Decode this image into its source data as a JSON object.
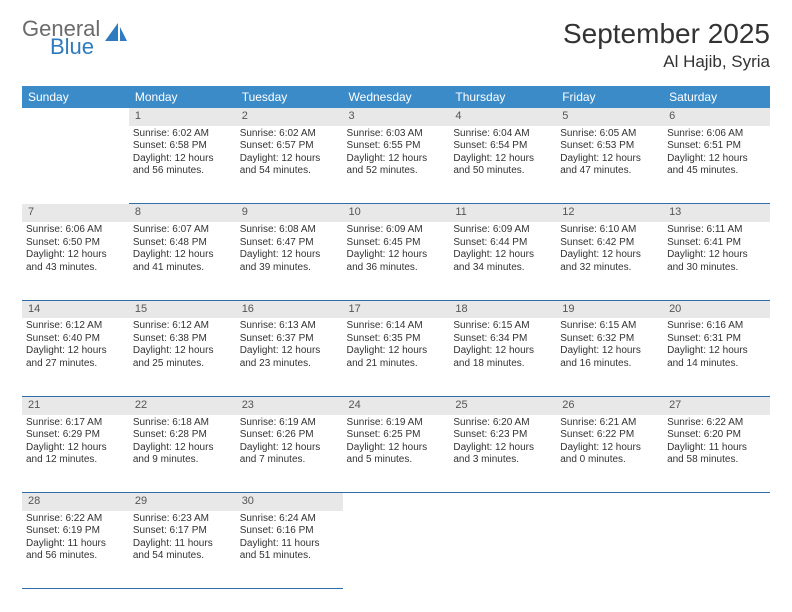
{
  "logo": {
    "general": "General",
    "blue": "Blue"
  },
  "title": "September 2025",
  "location": "Al Hajib, Syria",
  "colors": {
    "header_bg": "#3b8bc8",
    "header_text": "#ffffff",
    "daynum_bg": "#e8e8e8",
    "daynum_text": "#555555",
    "cell_border": "#2e6fa8",
    "logo_gray": "#6b6b6b",
    "logo_blue": "#2f7bbf"
  },
  "weekdays": [
    "Sunday",
    "Monday",
    "Tuesday",
    "Wednesday",
    "Thursday",
    "Friday",
    "Saturday"
  ],
  "weeks": [
    {
      "nums": [
        "",
        "1",
        "2",
        "3",
        "4",
        "5",
        "6"
      ],
      "cells": [
        null,
        {
          "sr": "Sunrise: 6:02 AM",
          "ss": "Sunset: 6:58 PM",
          "dl": "Daylight: 12 hours and 56 minutes."
        },
        {
          "sr": "Sunrise: 6:02 AM",
          "ss": "Sunset: 6:57 PM",
          "dl": "Daylight: 12 hours and 54 minutes."
        },
        {
          "sr": "Sunrise: 6:03 AM",
          "ss": "Sunset: 6:55 PM",
          "dl": "Daylight: 12 hours and 52 minutes."
        },
        {
          "sr": "Sunrise: 6:04 AM",
          "ss": "Sunset: 6:54 PM",
          "dl": "Daylight: 12 hours and 50 minutes."
        },
        {
          "sr": "Sunrise: 6:05 AM",
          "ss": "Sunset: 6:53 PM",
          "dl": "Daylight: 12 hours and 47 minutes."
        },
        {
          "sr": "Sunrise: 6:06 AM",
          "ss": "Sunset: 6:51 PM",
          "dl": "Daylight: 12 hours and 45 minutes."
        }
      ]
    },
    {
      "nums": [
        "7",
        "8",
        "9",
        "10",
        "11",
        "12",
        "13"
      ],
      "cells": [
        {
          "sr": "Sunrise: 6:06 AM",
          "ss": "Sunset: 6:50 PM",
          "dl": "Daylight: 12 hours and 43 minutes."
        },
        {
          "sr": "Sunrise: 6:07 AM",
          "ss": "Sunset: 6:48 PM",
          "dl": "Daylight: 12 hours and 41 minutes."
        },
        {
          "sr": "Sunrise: 6:08 AM",
          "ss": "Sunset: 6:47 PM",
          "dl": "Daylight: 12 hours and 39 minutes."
        },
        {
          "sr": "Sunrise: 6:09 AM",
          "ss": "Sunset: 6:45 PM",
          "dl": "Daylight: 12 hours and 36 minutes."
        },
        {
          "sr": "Sunrise: 6:09 AM",
          "ss": "Sunset: 6:44 PM",
          "dl": "Daylight: 12 hours and 34 minutes."
        },
        {
          "sr": "Sunrise: 6:10 AM",
          "ss": "Sunset: 6:42 PM",
          "dl": "Daylight: 12 hours and 32 minutes."
        },
        {
          "sr": "Sunrise: 6:11 AM",
          "ss": "Sunset: 6:41 PM",
          "dl": "Daylight: 12 hours and 30 minutes."
        }
      ]
    },
    {
      "nums": [
        "14",
        "15",
        "16",
        "17",
        "18",
        "19",
        "20"
      ],
      "cells": [
        {
          "sr": "Sunrise: 6:12 AM",
          "ss": "Sunset: 6:40 PM",
          "dl": "Daylight: 12 hours and 27 minutes."
        },
        {
          "sr": "Sunrise: 6:12 AM",
          "ss": "Sunset: 6:38 PM",
          "dl": "Daylight: 12 hours and 25 minutes."
        },
        {
          "sr": "Sunrise: 6:13 AM",
          "ss": "Sunset: 6:37 PM",
          "dl": "Daylight: 12 hours and 23 minutes."
        },
        {
          "sr": "Sunrise: 6:14 AM",
          "ss": "Sunset: 6:35 PM",
          "dl": "Daylight: 12 hours and 21 minutes."
        },
        {
          "sr": "Sunrise: 6:15 AM",
          "ss": "Sunset: 6:34 PM",
          "dl": "Daylight: 12 hours and 18 minutes."
        },
        {
          "sr": "Sunrise: 6:15 AM",
          "ss": "Sunset: 6:32 PM",
          "dl": "Daylight: 12 hours and 16 minutes."
        },
        {
          "sr": "Sunrise: 6:16 AM",
          "ss": "Sunset: 6:31 PM",
          "dl": "Daylight: 12 hours and 14 minutes."
        }
      ]
    },
    {
      "nums": [
        "21",
        "22",
        "23",
        "24",
        "25",
        "26",
        "27"
      ],
      "cells": [
        {
          "sr": "Sunrise: 6:17 AM",
          "ss": "Sunset: 6:29 PM",
          "dl": "Daylight: 12 hours and 12 minutes."
        },
        {
          "sr": "Sunrise: 6:18 AM",
          "ss": "Sunset: 6:28 PM",
          "dl": "Daylight: 12 hours and 9 minutes."
        },
        {
          "sr": "Sunrise: 6:19 AM",
          "ss": "Sunset: 6:26 PM",
          "dl": "Daylight: 12 hours and 7 minutes."
        },
        {
          "sr": "Sunrise: 6:19 AM",
          "ss": "Sunset: 6:25 PM",
          "dl": "Daylight: 12 hours and 5 minutes."
        },
        {
          "sr": "Sunrise: 6:20 AM",
          "ss": "Sunset: 6:23 PM",
          "dl": "Daylight: 12 hours and 3 minutes."
        },
        {
          "sr": "Sunrise: 6:21 AM",
          "ss": "Sunset: 6:22 PM",
          "dl": "Daylight: 12 hours and 0 minutes."
        },
        {
          "sr": "Sunrise: 6:22 AM",
          "ss": "Sunset: 6:20 PM",
          "dl": "Daylight: 11 hours and 58 minutes."
        }
      ]
    },
    {
      "nums": [
        "28",
        "29",
        "30",
        "",
        "",
        "",
        ""
      ],
      "cells": [
        {
          "sr": "Sunrise: 6:22 AM",
          "ss": "Sunset: 6:19 PM",
          "dl": "Daylight: 11 hours and 56 minutes."
        },
        {
          "sr": "Sunrise: 6:23 AM",
          "ss": "Sunset: 6:17 PM",
          "dl": "Daylight: 11 hours and 54 minutes."
        },
        {
          "sr": "Sunrise: 6:24 AM",
          "ss": "Sunset: 6:16 PM",
          "dl": "Daylight: 11 hours and 51 minutes."
        },
        null,
        null,
        null,
        null
      ]
    }
  ]
}
